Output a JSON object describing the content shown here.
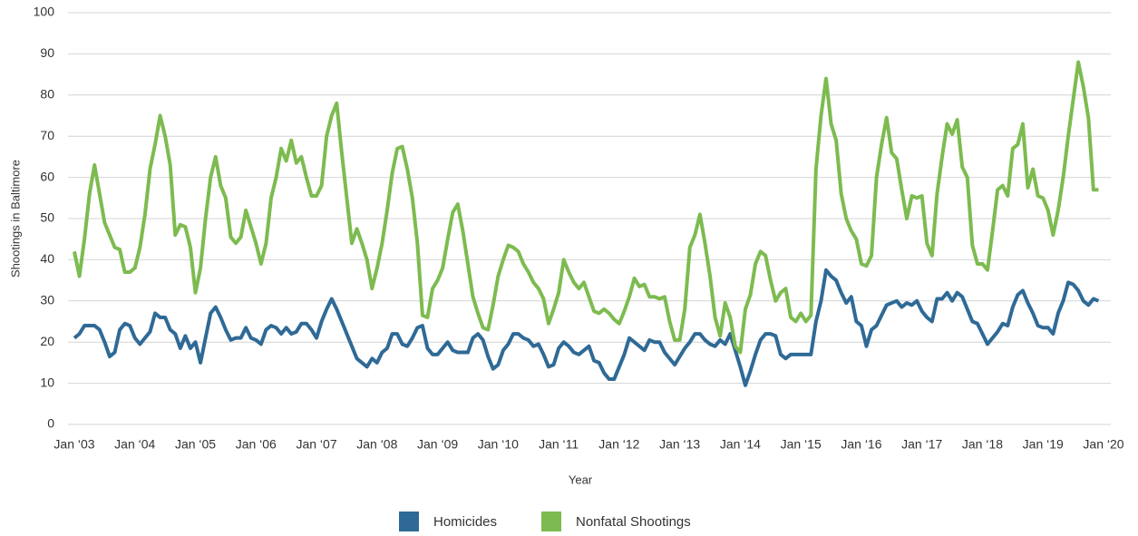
{
  "chart_data": {
    "type": "line",
    "xlabel": "Year",
    "ylabel": "Shootings in Baltimore",
    "categories": [
      "Jan ‘03",
      null,
      null,
      null,
      null,
      null,
      null,
      null,
      null,
      null,
      null,
      null,
      "Jan ‘04",
      null,
      null,
      null,
      null,
      null,
      null,
      null,
      null,
      null,
      null,
      null,
      "Jan ‘05",
      null,
      null,
      null,
      null,
      null,
      null,
      null,
      null,
      null,
      null,
      null,
      "Jan ‘06",
      null,
      null,
      null,
      null,
      null,
      null,
      null,
      null,
      null,
      null,
      null,
      "Jan ‘07",
      null,
      null,
      null,
      null,
      null,
      null,
      null,
      null,
      null,
      null,
      null,
      "Jan ‘08",
      null,
      null,
      null,
      null,
      null,
      null,
      null,
      null,
      null,
      null,
      null,
      "Jan ‘09",
      null,
      null,
      null,
      null,
      null,
      null,
      null,
      null,
      null,
      null,
      null,
      "Jan ‘10",
      null,
      null,
      null,
      null,
      null,
      null,
      null,
      null,
      null,
      null,
      null,
      "Jan ‘11",
      null,
      null,
      null,
      null,
      null,
      null,
      null,
      null,
      null,
      null,
      null,
      "Jan ‘12",
      null,
      null,
      null,
      null,
      null,
      null,
      null,
      null,
      null,
      null,
      null,
      "Jan ‘13",
      null,
      null,
      null,
      null,
      null,
      null,
      null,
      null,
      null,
      null,
      null,
      "Jan ‘14",
      null,
      null,
      null,
      null,
      null,
      null,
      null,
      null,
      null,
      null,
      null,
      "Jan ‘15",
      null,
      null,
      null,
      null,
      null,
      null,
      null,
      null,
      null,
      null,
      null,
      "Jan ‘16",
      null,
      null,
      null,
      null,
      null,
      null,
      null,
      null,
      null,
      null,
      null,
      "Jan ‘17",
      null,
      null,
      null,
      null,
      null,
      null,
      null,
      null,
      null,
      null,
      null,
      "Jan ‘18",
      null,
      null,
      null,
      null,
      null,
      null,
      null,
      null,
      null,
      null,
      null,
      "Jan ‘19",
      null,
      null,
      null,
      null,
      null,
      null,
      null,
      null,
      null,
      null,
      null,
      "Jan ‘20"
    ],
    "series": [
      {
        "name": "Homicides",
        "color": "#2f6a96",
        "values": [
          21,
          22,
          24,
          24,
          24,
          23,
          20,
          16.5,
          17.5,
          23,
          24.5,
          24,
          21,
          19.5,
          21,
          22.5,
          27,
          26,
          26,
          23,
          22,
          18.5,
          21.5,
          18.5,
          20,
          15,
          21,
          27,
          28.5,
          26,
          23,
          20.5,
          21,
          21,
          23.5,
          21,
          20.5,
          19.5,
          23,
          24,
          23.5,
          22,
          23.5,
          22,
          22.5,
          24.5,
          24.5,
          23,
          21,
          25,
          28,
          30.5,
          28,
          25,
          22,
          19,
          16,
          15,
          14,
          16,
          15,
          17.5,
          18.5,
          22,
          22,
          19.5,
          19,
          21,
          23.5,
          24,
          18.5,
          17,
          17,
          18.5,
          20,
          18,
          17.5,
          17.5,
          17.5,
          21,
          22,
          20.5,
          16.5,
          13.5,
          14.5,
          18,
          19.5,
          22,
          22,
          21,
          20.5,
          19,
          19.5,
          17,
          14,
          14.5,
          18.5,
          20,
          19,
          17.5,
          17,
          18,
          19,
          15.5,
          15,
          12.5,
          11,
          11,
          14,
          17,
          21,
          20,
          19,
          18,
          20.5,
          20,
          20,
          17.5,
          16,
          14.5,
          16.5,
          18.5,
          20,
          22,
          22,
          20.5,
          19.5,
          19,
          20.5,
          19.5,
          22,
          18,
          14,
          9.5,
          13,
          17,
          20.5,
          22,
          22,
          21.5,
          17,
          16,
          17,
          17,
          17,
          17,
          17,
          25,
          30,
          37.5,
          36,
          35,
          32,
          29.5,
          31,
          25,
          24,
          19,
          23,
          24,
          26.5,
          29,
          29.5,
          30,
          28.5,
          29.5,
          29,
          30,
          27.5,
          26,
          25,
          30.5,
          30.5,
          32,
          30,
          32,
          31,
          28,
          25,
          24.5,
          22,
          19.5,
          21,
          22.5,
          24.5,
          24,
          28.5,
          31.5,
          32.5,
          29.5,
          27,
          24,
          23.5,
          23.5,
          22,
          27,
          30,
          34.5,
          34,
          32.5,
          30,
          29,
          30.5,
          30,
          null
        ]
      },
      {
        "name": "Nonfatal Shootings",
        "color": "#7dbb50",
        "values": [
          42,
          36,
          45,
          56,
          63,
          56,
          49,
          46,
          43,
          42.5,
          37,
          37,
          38,
          43,
          51,
          62,
          68,
          75,
          70,
          63,
          46,
          48.5,
          48,
          43,
          32,
          38,
          50,
          60,
          65,
          58,
          55,
          45.5,
          44,
          45.5,
          52,
          48,
          44,
          39,
          44,
          55,
          60,
          67,
          64,
          69,
          63.5,
          65,
          60,
          55.5,
          55.5,
          58,
          70,
          75,
          78,
          66,
          55,
          44,
          47.5,
          44,
          40,
          33,
          38,
          44,
          52,
          61,
          67,
          67.5,
          62,
          55,
          44,
          26.5,
          26,
          33,
          35,
          38,
          45,
          51.5,
          53.5,
          47,
          39,
          31,
          27,
          23.5,
          23,
          29,
          36,
          40,
          43.5,
          43,
          42,
          39,
          37,
          34.5,
          33,
          30.5,
          24.5,
          28,
          32,
          40,
          37,
          34.5,
          33,
          34.5,
          31,
          27.5,
          27,
          28,
          27,
          25.5,
          24.5,
          27.5,
          31,
          35.5,
          33.5,
          34,
          31,
          31,
          30.5,
          31,
          25,
          20.5,
          20.5,
          28,
          43,
          46,
          51,
          44,
          36,
          26,
          21.5,
          29.5,
          26,
          19,
          17.5,
          28,
          31.5,
          39,
          42,
          41,
          35,
          30,
          32,
          33,
          26,
          25,
          27,
          25,
          26.5,
          62,
          75,
          84,
          73,
          69,
          56,
          50,
          47,
          45,
          39,
          38.5,
          41,
          60,
          68,
          74.5,
          66,
          64.5,
          57,
          50,
          55.5,
          55,
          55.5,
          44,
          41,
          56,
          65,
          73,
          70.5,
          74,
          62.5,
          60,
          43.5,
          39,
          39,
          37.5,
          47,
          57,
          58,
          55.5,
          67,
          68,
          73,
          57.5,
          62,
          55.5,
          55,
          52,
          46,
          52,
          60,
          70,
          79,
          88,
          82,
          74.5,
          57,
          57,
          null
        ]
      }
    ],
    "ylim": [
      0,
      100
    ],
    "yticks": [
      0,
      10,
      20,
      30,
      40,
      50,
      60,
      70,
      80,
      90,
      100
    ],
    "grid": true,
    "legend": "bottom"
  }
}
